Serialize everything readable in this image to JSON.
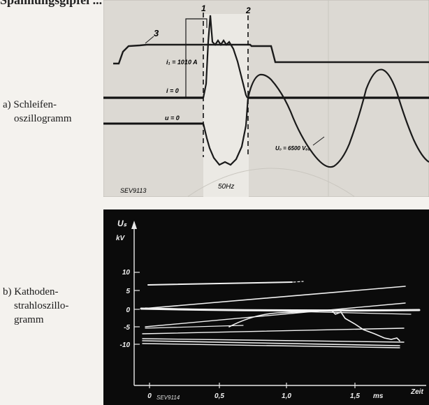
{
  "header_text": "Spannungsgipfel ... Kontakte ... Kompens",
  "figure_a": {
    "caption_line1": "a) Schleifen-",
    "caption_line2": "oszillogramm",
    "marker_1": "1",
    "marker_2": "2",
    "trace_label_3": "3",
    "current_label": "i₁ = 1010 A",
    "zero_current_label": "i = 0",
    "zero_voltage_label": "u = 0",
    "voltage_label": "U₀ = 6500 Vₑₒ",
    "frequency_label": "50Hz",
    "plate_id": "SEV9113"
  },
  "figure_b": {
    "caption_line1": "b) Kathoden-",
    "caption_line2": "strahloszillo-",
    "caption_line3": "gramm",
    "y_axis_symbol": "Uₛ",
    "y_axis_unit": "kV",
    "y_ticks": [
      "10",
      "5",
      "0",
      "-5",
      "-10"
    ],
    "x_ticks": [
      "0",
      "0,5",
      "1,0",
      "1,5"
    ],
    "x_unit": "ms",
    "x_axis_word": "Zeit",
    "plate_id": "SEV9114"
  }
}
